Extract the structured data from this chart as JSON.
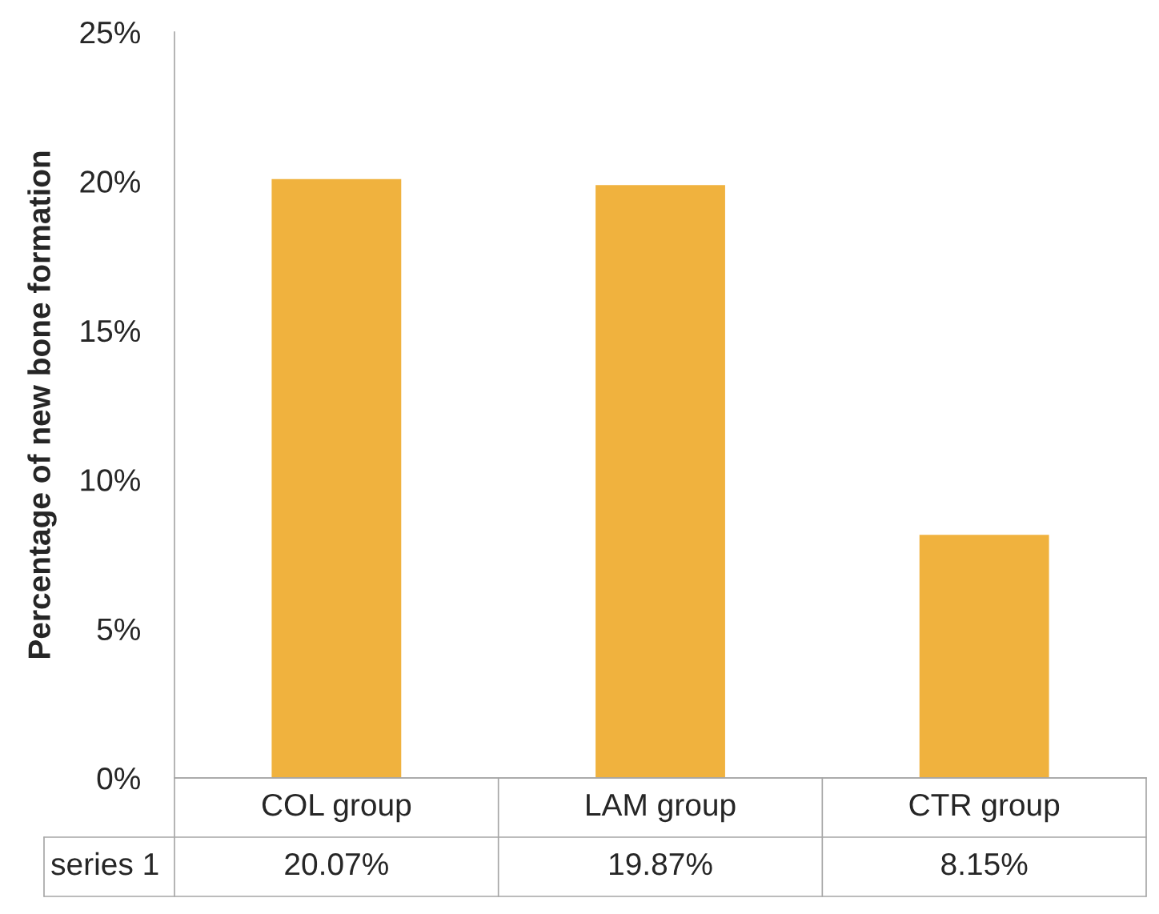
{
  "chart_data": {
    "type": "bar",
    "ylabel": "Percentage of new bone formation",
    "categories": [
      "COL group",
      "LAM group",
      "CTR group"
    ],
    "series": [
      {
        "name": "series 1",
        "color": "#f0b23e",
        "values": [
          20.07,
          19.87,
          8.15
        ],
        "value_labels": [
          "20.07%",
          "19.87%",
          "8.15%"
        ]
      }
    ],
    "ylim": [
      0,
      25
    ],
    "yticks": [
      {
        "value": 0,
        "label": "0%"
      },
      {
        "value": 5,
        "label": "5%"
      },
      {
        "value": 10,
        "label": "10%"
      },
      {
        "value": 15,
        "label": "15%"
      },
      {
        "value": 20,
        "label": "20%"
      },
      {
        "value": 25,
        "label": "25%"
      }
    ]
  }
}
